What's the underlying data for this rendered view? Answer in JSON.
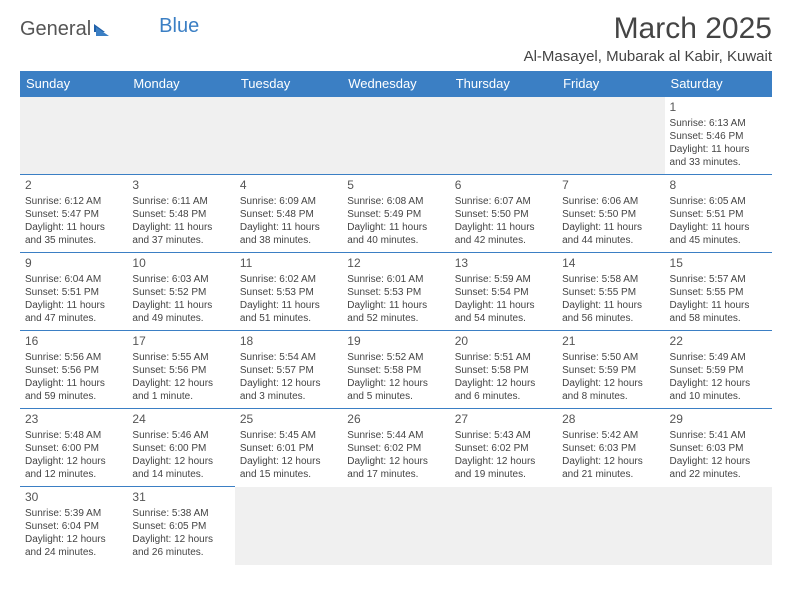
{
  "logo": {
    "text1": "General",
    "text2": "Blue"
  },
  "title": "March 2025",
  "location": "Al-Masayel, Mubarak al Kabir, Kuwait",
  "colors": {
    "header_bg": "#3b7fc4",
    "header_fg": "#ffffff",
    "cell_border": "#3b7fc4",
    "blank_bg": "#f0f0f0",
    "text": "#444444"
  },
  "weekdays": [
    "Sunday",
    "Monday",
    "Tuesday",
    "Wednesday",
    "Thursday",
    "Friday",
    "Saturday"
  ],
  "weeks": [
    [
      null,
      null,
      null,
      null,
      null,
      null,
      {
        "n": "1",
        "sr": "Sunrise: 6:13 AM",
        "ss": "Sunset: 5:46 PM",
        "dl": "Daylight: 11 hours and 33 minutes."
      }
    ],
    [
      {
        "n": "2",
        "sr": "Sunrise: 6:12 AM",
        "ss": "Sunset: 5:47 PM",
        "dl": "Daylight: 11 hours and 35 minutes."
      },
      {
        "n": "3",
        "sr": "Sunrise: 6:11 AM",
        "ss": "Sunset: 5:48 PM",
        "dl": "Daylight: 11 hours and 37 minutes."
      },
      {
        "n": "4",
        "sr": "Sunrise: 6:09 AM",
        "ss": "Sunset: 5:48 PM",
        "dl": "Daylight: 11 hours and 38 minutes."
      },
      {
        "n": "5",
        "sr": "Sunrise: 6:08 AM",
        "ss": "Sunset: 5:49 PM",
        "dl": "Daylight: 11 hours and 40 minutes."
      },
      {
        "n": "6",
        "sr": "Sunrise: 6:07 AM",
        "ss": "Sunset: 5:50 PM",
        "dl": "Daylight: 11 hours and 42 minutes."
      },
      {
        "n": "7",
        "sr": "Sunrise: 6:06 AM",
        "ss": "Sunset: 5:50 PM",
        "dl": "Daylight: 11 hours and 44 minutes."
      },
      {
        "n": "8",
        "sr": "Sunrise: 6:05 AM",
        "ss": "Sunset: 5:51 PM",
        "dl": "Daylight: 11 hours and 45 minutes."
      }
    ],
    [
      {
        "n": "9",
        "sr": "Sunrise: 6:04 AM",
        "ss": "Sunset: 5:51 PM",
        "dl": "Daylight: 11 hours and 47 minutes."
      },
      {
        "n": "10",
        "sr": "Sunrise: 6:03 AM",
        "ss": "Sunset: 5:52 PM",
        "dl": "Daylight: 11 hours and 49 minutes."
      },
      {
        "n": "11",
        "sr": "Sunrise: 6:02 AM",
        "ss": "Sunset: 5:53 PM",
        "dl": "Daylight: 11 hours and 51 minutes."
      },
      {
        "n": "12",
        "sr": "Sunrise: 6:01 AM",
        "ss": "Sunset: 5:53 PM",
        "dl": "Daylight: 11 hours and 52 minutes."
      },
      {
        "n": "13",
        "sr": "Sunrise: 5:59 AM",
        "ss": "Sunset: 5:54 PM",
        "dl": "Daylight: 11 hours and 54 minutes."
      },
      {
        "n": "14",
        "sr": "Sunrise: 5:58 AM",
        "ss": "Sunset: 5:55 PM",
        "dl": "Daylight: 11 hours and 56 minutes."
      },
      {
        "n": "15",
        "sr": "Sunrise: 5:57 AM",
        "ss": "Sunset: 5:55 PM",
        "dl": "Daylight: 11 hours and 58 minutes."
      }
    ],
    [
      {
        "n": "16",
        "sr": "Sunrise: 5:56 AM",
        "ss": "Sunset: 5:56 PM",
        "dl": "Daylight: 11 hours and 59 minutes."
      },
      {
        "n": "17",
        "sr": "Sunrise: 5:55 AM",
        "ss": "Sunset: 5:56 PM",
        "dl": "Daylight: 12 hours and 1 minute."
      },
      {
        "n": "18",
        "sr": "Sunrise: 5:54 AM",
        "ss": "Sunset: 5:57 PM",
        "dl": "Daylight: 12 hours and 3 minutes."
      },
      {
        "n": "19",
        "sr": "Sunrise: 5:52 AM",
        "ss": "Sunset: 5:58 PM",
        "dl": "Daylight: 12 hours and 5 minutes."
      },
      {
        "n": "20",
        "sr": "Sunrise: 5:51 AM",
        "ss": "Sunset: 5:58 PM",
        "dl": "Daylight: 12 hours and 6 minutes."
      },
      {
        "n": "21",
        "sr": "Sunrise: 5:50 AM",
        "ss": "Sunset: 5:59 PM",
        "dl": "Daylight: 12 hours and 8 minutes."
      },
      {
        "n": "22",
        "sr": "Sunrise: 5:49 AM",
        "ss": "Sunset: 5:59 PM",
        "dl": "Daylight: 12 hours and 10 minutes."
      }
    ],
    [
      {
        "n": "23",
        "sr": "Sunrise: 5:48 AM",
        "ss": "Sunset: 6:00 PM",
        "dl": "Daylight: 12 hours and 12 minutes."
      },
      {
        "n": "24",
        "sr": "Sunrise: 5:46 AM",
        "ss": "Sunset: 6:00 PM",
        "dl": "Daylight: 12 hours and 14 minutes."
      },
      {
        "n": "25",
        "sr": "Sunrise: 5:45 AM",
        "ss": "Sunset: 6:01 PM",
        "dl": "Daylight: 12 hours and 15 minutes."
      },
      {
        "n": "26",
        "sr": "Sunrise: 5:44 AM",
        "ss": "Sunset: 6:02 PM",
        "dl": "Daylight: 12 hours and 17 minutes."
      },
      {
        "n": "27",
        "sr": "Sunrise: 5:43 AM",
        "ss": "Sunset: 6:02 PM",
        "dl": "Daylight: 12 hours and 19 minutes."
      },
      {
        "n": "28",
        "sr": "Sunrise: 5:42 AM",
        "ss": "Sunset: 6:03 PM",
        "dl": "Daylight: 12 hours and 21 minutes."
      },
      {
        "n": "29",
        "sr": "Sunrise: 5:41 AM",
        "ss": "Sunset: 6:03 PM",
        "dl": "Daylight: 12 hours and 22 minutes."
      }
    ],
    [
      {
        "n": "30",
        "sr": "Sunrise: 5:39 AM",
        "ss": "Sunset: 6:04 PM",
        "dl": "Daylight: 12 hours and 24 minutes."
      },
      {
        "n": "31",
        "sr": "Sunrise: 5:38 AM",
        "ss": "Sunset: 6:05 PM",
        "dl": "Daylight: 12 hours and 26 minutes."
      },
      null,
      null,
      null,
      null,
      null
    ]
  ]
}
